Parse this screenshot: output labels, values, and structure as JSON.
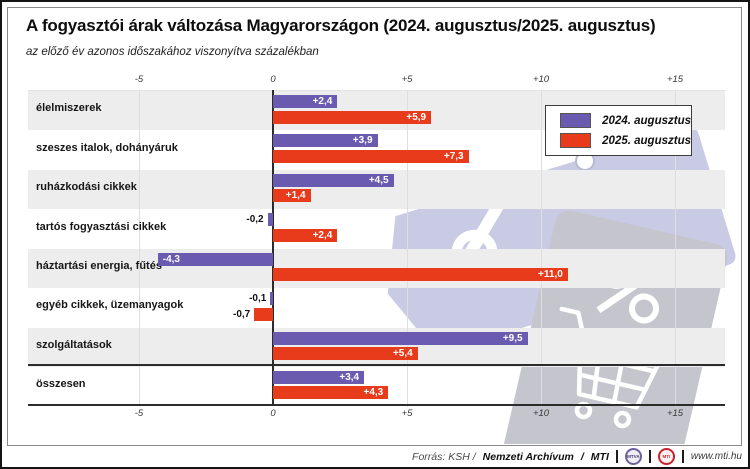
{
  "header": {
    "title": "A fogyasztói árak változása Magyarországon (2024. augusztus/2025. augusztus)",
    "subtitle": "az előző év azonos időszakához viszonyítva százalékban"
  },
  "legend": {
    "items": [
      {
        "label": "2024. augusztus",
        "color": "#6a5bb0"
      },
      {
        "label": "2025. augusztus",
        "color": "#e73b1b"
      }
    ],
    "position": "top-right"
  },
  "chart_data": {
    "type": "bar",
    "orientation": "horizontal",
    "title": "A fogyasztói árak változása Magyarországon (2024. augusztus/2025. augusztus)",
    "subtitle": "az előző év azonos időszakához viszonyítva százalékban",
    "unit": "percent",
    "categories": [
      "élelmiszerek",
      "szeszes italok, dohányáruk",
      "ruházkodási cikkek",
      "tartós fogyasztási cikkek",
      "háztartási energia, fűtés",
      "egyéb cikkek, üzemanyagok",
      "szolgáltatások",
      "összesen"
    ],
    "series": [
      {
        "name": "2024. augusztus",
        "color": "#6a5bb0",
        "values": [
          2.4,
          3.9,
          4.5,
          -0.2,
          -4.3,
          -0.1,
          9.5,
          3.4
        ],
        "labels": [
          "+2,4",
          "+3,9",
          "+4,5",
          "-0,2",
          "-4,3",
          "-0,1",
          "+9,5",
          "+3,4"
        ]
      },
      {
        "name": "2025. augusztus",
        "color": "#e73b1b",
        "values": [
          5.9,
          7.3,
          1.4,
          2.4,
          11.0,
          -0.7,
          5.4,
          4.3
        ],
        "labels": [
          "+5,9",
          "+7,3",
          "+1,4",
          "+2,4",
          "+11,0",
          "-0,7",
          "+5,4",
          "+4,3"
        ]
      }
    ],
    "x_axis": {
      "ticks": [
        -5,
        0,
        5,
        10,
        15
      ],
      "tick_labels": [
        "-5",
        "0",
        "+5",
        "+10",
        "+15"
      ],
      "range": [
        -9.1,
        16.9
      ],
      "tick_labels_shown": "top and bottom"
    },
    "grid": true,
    "separator_before_category": "összesen",
    "row_shading": "alternating light gray bands",
    "watermark_icons": [
      "price-tag-icon",
      "percent-icon",
      "shopping-cart-icon",
      "globe-orbit-icon"
    ]
  },
  "footer": {
    "source_plain": "Forrás: KSH /",
    "source_bold_1": "Nemzeti Archívum",
    "source_sep": "/",
    "source_bold_2": "MTI",
    "url": "www.mti.hu",
    "logos": [
      {
        "label": "MTVA"
      },
      {
        "label": "MTI"
      }
    ]
  }
}
